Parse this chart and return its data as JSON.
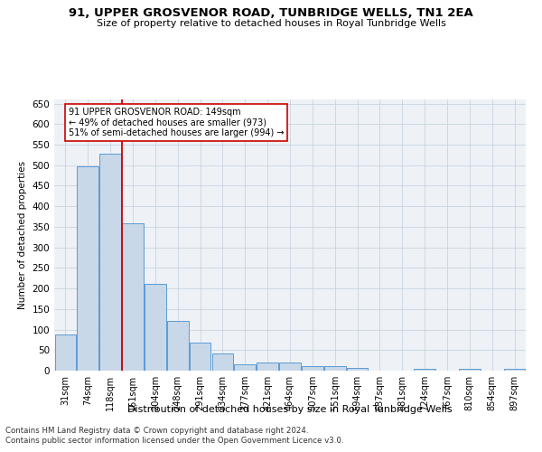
{
  "title": "91, UPPER GROSVENOR ROAD, TUNBRIDGE WELLS, TN1 2EA",
  "subtitle": "Size of property relative to detached houses in Royal Tunbridge Wells",
  "xlabel": "Distribution of detached houses by size in Royal Tunbridge Wells",
  "ylabel": "Number of detached properties",
  "footnote1": "Contains HM Land Registry data © Crown copyright and database right 2024.",
  "footnote2": "Contains public sector information licensed under the Open Government Licence v3.0.",
  "bar_labels": [
    "31sqm",
    "74sqm",
    "118sqm",
    "161sqm",
    "204sqm",
    "248sqm",
    "291sqm",
    "334sqm",
    "377sqm",
    "421sqm",
    "464sqm",
    "507sqm",
    "551sqm",
    "594sqm",
    "637sqm",
    "681sqm",
    "724sqm",
    "767sqm",
    "810sqm",
    "854sqm",
    "897sqm"
  ],
  "bar_values": [
    88,
    498,
    527,
    358,
    212,
    120,
    68,
    42,
    16,
    19,
    19,
    10,
    11,
    6,
    0,
    0,
    5,
    0,
    5,
    0,
    4
  ],
  "bar_color": "#c8d8e8",
  "bar_edge_color": "#5b9bd5",
  "ylim": [
    0,
    660
  ],
  "yticks": [
    0,
    50,
    100,
    150,
    200,
    250,
    300,
    350,
    400,
    450,
    500,
    550,
    600,
    650
  ],
  "annotation_text": "91 UPPER GROSVENOR ROAD: 149sqm\n← 49% of detached houses are smaller (973)\n51% of semi-detached houses are larger (994) →",
  "property_line_x": 2.5,
  "bg_color": "#eef2f7",
  "grid_color": "#c8d4e0"
}
